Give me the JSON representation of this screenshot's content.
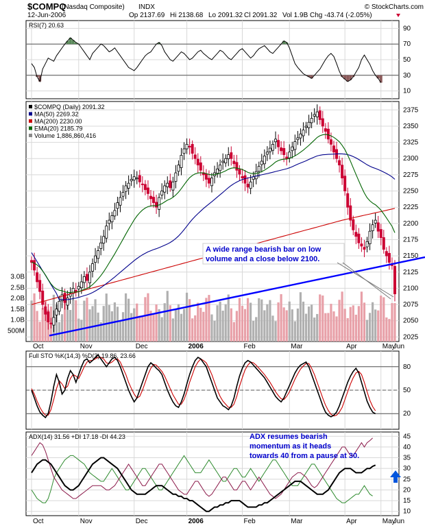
{
  "header": {
    "symbol": "$COMPQ",
    "name": "(Nasdaq Composite)",
    "exchange": "INDX",
    "date": "12-Jun-2006",
    "open": "Op 2137.69",
    "high": "Hi 2138.68",
    "low": "Lo 2091.32",
    "close": "Cl 2091.32",
    "volume": "Vol 1.9B",
    "change": "Chg -43.74 (-2.05%)",
    "watermark": "© StockCharts.com"
  },
  "colors": {
    "up_candle": "#ffffff",
    "down_candle": "#cc0033",
    "ma50": "#00008b",
    "ma200": "#cc0000",
    "ema20": "#006400",
    "trendline": "#0000ff",
    "volume_up": "#b0b0b0",
    "volume_down": "#e8a0a8",
    "rsi_overbought_fill": "#5a8a5a",
    "rsi_oversold_fill": "#8b5a5a",
    "adx": "#000000",
    "plus_di": "#2e8b2e",
    "minus_di": "#8b1a4a",
    "arrow": "#0055dd"
  },
  "x_axis": {
    "months": [
      "Oct",
      "Nov",
      "Dec",
      "2006",
      "Feb",
      "Mar",
      "Apr",
      "May",
      "Jun"
    ]
  },
  "chart_data": [
    {
      "type": "line",
      "panel": "rsi",
      "label": "RSI(7) 20.63",
      "y_ticks": [
        10,
        30,
        50,
        70,
        90
      ],
      "ylim": [
        0,
        100
      ],
      "levels": [
        30,
        70
      ],
      "series": [
        {
          "name": "RSI(7)",
          "values": [
            45,
            40,
            28,
            22,
            38,
            45,
            52,
            50,
            48,
            55,
            60,
            65,
            70,
            74,
            78,
            75,
            72,
            70,
            65,
            60,
            55,
            50,
            58,
            62,
            66,
            70,
            68,
            64,
            60,
            62,
            65,
            60,
            55,
            50,
            45,
            40,
            38,
            36,
            40,
            45,
            50,
            55,
            58,
            60,
            65,
            70,
            72,
            68,
            60,
            55,
            50,
            48,
            52,
            56,
            60,
            58,
            54,
            50,
            52,
            56,
            60,
            62,
            58,
            55,
            52,
            50,
            54,
            58,
            62,
            60,
            56,
            52,
            50,
            54,
            58,
            62,
            64,
            60,
            56,
            52,
            55,
            60,
            64,
            66,
            68,
            64,
            60,
            58,
            62,
            66,
            70,
            74,
            72,
            65,
            55,
            45,
            40,
            36,
            32,
            30,
            28,
            26,
            30,
            34,
            38,
            44,
            50,
            55,
            58,
            54,
            45,
            35,
            28,
            25,
            22,
            24,
            28,
            34,
            40,
            50,
            56,
            50,
            44,
            36,
            30,
            26,
            20.63
          ]
        }
      ]
    },
    {
      "type": "candlestick",
      "panel": "price",
      "label": "$COMPQ (Daily) 2091.32",
      "y_ticks": [
        2025,
        2050,
        2075,
        2100,
        2125,
        2150,
        2175,
        2200,
        2225,
        2250,
        2275,
        2300,
        2325,
        2350,
        2375
      ],
      "ylim": [
        2018,
        2388
      ],
      "legend": [
        "MA(50) 2269.32",
        "MA(200) 2230.00",
        "EMA(20) 2185.79",
        "Volume 1,886,860,416"
      ],
      "close": [
        2140,
        2128,
        2110,
        2095,
        2075,
        2060,
        2048,
        2045,
        2055,
        2068,
        2080,
        2090,
        2078,
        2085,
        2092,
        2100,
        2095,
        2103,
        2110,
        2118,
        2112,
        2125,
        2138,
        2150,
        2158,
        2170,
        2180,
        2196,
        2205,
        2212,
        2220,
        2232,
        2240,
        2248,
        2258,
        2262,
        2268,
        2272,
        2270,
        2264,
        2260,
        2252,
        2246,
        2238,
        2232,
        2225,
        2240,
        2250,
        2258,
        2262,
        2255,
        2264,
        2278,
        2290,
        2305,
        2315,
        2322,
        2318,
        2308,
        2300,
        2290,
        2282,
        2275,
        2268,
        2262,
        2270,
        2278,
        2284,
        2290,
        2296,
        2300,
        2306,
        2300,
        2292,
        2282,
        2276,
        2270,
        2262,
        2256,
        2264,
        2272,
        2280,
        2288,
        2296,
        2304,
        2310,
        2316,
        2322,
        2330,
        2318,
        2312,
        2306,
        2300,
        2310,
        2318,
        2326,
        2332,
        2338,
        2344,
        2350,
        2356,
        2362,
        2368,
        2372,
        2360,
        2350,
        2342,
        2330,
        2322,
        2310,
        2300,
        2290,
        2270,
        2250,
        2225,
        2205,
        2190,
        2180,
        2170,
        2165,
        2160,
        2172,
        2188,
        2198,
        2205,
        2188,
        2178,
        2160,
        2150,
        2140,
        2135,
        2091.32
      ]
    },
    {
      "type": "bar",
      "panel": "volume",
      "y_ticks": [
        "500M",
        "1.0B",
        "1.5B",
        "2.0B",
        "2.5B",
        "3.0B"
      ],
      "ylim": [
        0,
        3.5
      ],
      "unit": "billion shares"
    },
    {
      "type": "line",
      "panel": "stochastic",
      "label": "Full STO %K(14,3) %D(3) 19.86, 23.66",
      "y_ticks": [
        20,
        50,
        80
      ],
      "ylim": [
        0,
        100
      ],
      "series": [
        {
          "name": "%K(14,3)",
          "values": [
            50,
            40,
            30,
            22,
            18,
            15,
            20,
            35,
            55,
            70,
            60,
            45,
            50,
            65,
            75,
            70,
            60,
            70,
            80,
            88,
            90,
            85,
            88,
            92,
            95,
            90,
            85,
            80,
            85,
            90,
            92,
            88,
            80,
            70,
            60,
            50,
            42,
            35,
            40,
            50,
            60,
            70,
            80,
            85,
            82,
            78,
            75,
            70,
            60,
            50,
            42,
            35,
            30,
            28,
            35,
            45,
            58,
            70,
            80,
            88,
            92,
            90,
            85,
            80,
            70,
            60,
            50,
            40,
            35,
            30,
            28,
            25,
            30,
            40,
            55,
            68,
            78,
            85,
            88,
            86,
            82,
            78,
            74,
            70,
            66,
            60,
            54,
            48,
            42,
            38,
            35,
            40,
            48,
            56,
            64,
            72,
            78,
            82,
            84,
            86,
            80,
            70,
            60,
            50,
            40,
            30,
            22,
            18,
            16,
            18,
            22,
            30,
            40,
            50,
            60,
            68,
            74,
            78,
            72,
            60,
            48,
            36,
            28,
            22,
            19.86
          ]
        },
        {
          "name": "%D(3)",
          "values": [
            52,
            45,
            36,
            28,
            22,
            18,
            18,
            25,
            38,
            52,
            62,
            58,
            52,
            55,
            65,
            70,
            68,
            65,
            72,
            80,
            86,
            88,
            88,
            90,
            92,
            92,
            90,
            85,
            84,
            86,
            89,
            90,
            86,
            78,
            70,
            60,
            52,
            45,
            40,
            42,
            50,
            60,
            70,
            78,
            83,
            82,
            78,
            74,
            68,
            60,
            52,
            44,
            38,
            32,
            32,
            38,
            48,
            60,
            70,
            80,
            86,
            90,
            88,
            85,
            78,
            70,
            60,
            50,
            42,
            36,
            32,
            28,
            28,
            32,
            42,
            55,
            66,
            76,
            82,
            86,
            85,
            82,
            78,
            74,
            70,
            65,
            60,
            54,
            48,
            43,
            39,
            38,
            42,
            48,
            56,
            64,
            71,
            77,
            81,
            84,
            84,
            78,
            70,
            60,
            50,
            40,
            31,
            24,
            19,
            17,
            18,
            22,
            28,
            38,
            48,
            58,
            66,
            72,
            74,
            70,
            60,
            48,
            37,
            29,
            23.66
          ]
        }
      ],
      "levels": [
        20,
        50,
        80
      ]
    },
    {
      "type": "line",
      "panel": "adx",
      "label": "ADX(14) 31.56 +DI 17.18 -DI 44.23",
      "y_ticks": [
        10,
        15,
        20,
        25,
        30,
        35,
        40,
        45
      ],
      "ylim": [
        8,
        47
      ],
      "series": [
        {
          "name": "ADX(14)",
          "values": [
            28,
            30,
            32,
            33,
            34,
            34,
            33,
            32,
            30,
            28,
            26,
            24,
            22,
            21,
            20,
            20,
            21,
            22,
            24,
            26,
            28,
            30,
            32,
            33,
            34,
            35,
            35,
            34,
            33,
            32,
            31,
            30,
            28,
            26,
            24,
            22,
            20,
            19,
            18,
            18,
            18,
            18,
            19,
            20,
            21,
            22,
            22,
            22,
            21,
            20,
            19,
            18,
            18,
            17,
            17,
            16,
            16,
            15,
            15,
            14,
            13,
            12,
            11,
            10,
            10,
            11,
            12,
            12,
            13,
            13,
            14,
            14,
            15,
            15,
            15,
            15,
            14,
            13,
            12,
            12,
            12,
            12,
            13,
            13,
            14,
            14,
            15,
            16,
            17,
            18,
            19,
            20,
            21,
            22,
            23,
            24,
            24,
            24,
            23,
            22,
            21,
            20,
            19,
            18,
            18,
            18,
            19,
            20,
            22,
            24,
            26,
            28,
            29,
            30,
            30,
            30,
            29,
            28,
            28,
            28,
            29,
            30,
            30,
            31,
            31.56
          ]
        },
        {
          "name": "+DI",
          "values": [
            20,
            18,
            16,
            15,
            14,
            14,
            16,
            20,
            25,
            28,
            30,
            32,
            34,
            35,
            36,
            36,
            35,
            34,
            33,
            32,
            30,
            28,
            27,
            26,
            25,
            24,
            24,
            26,
            28,
            30,
            28,
            26,
            24,
            22,
            20,
            20,
            22,
            24,
            26,
            28,
            30,
            30,
            28,
            26,
            24,
            22,
            20,
            20,
            22,
            24,
            26,
            28,
            30,
            32,
            34,
            36,
            34,
            32,
            30,
            28,
            28,
            28,
            30,
            32,
            34,
            32,
            30,
            28,
            26,
            24,
            24,
            26,
            28,
            30,
            30,
            28,
            26,
            26,
            28,
            30,
            28,
            26,
            24,
            26,
            28,
            30,
            32,
            34,
            34,
            32,
            30,
            28,
            26,
            24,
            22,
            22,
            22,
            24,
            26,
            28,
            30,
            32,
            32,
            30,
            28,
            26,
            24,
            22,
            20,
            18,
            16,
            15,
            14,
            14,
            15,
            16,
            17,
            18,
            18,
            20,
            22,
            20,
            18,
            17.18
          ]
        },
        {
          "name": "-DI",
          "values": [
            36,
            38,
            40,
            42,
            41,
            38,
            34,
            30,
            26,
            24,
            22,
            20,
            19,
            18,
            17,
            16,
            16,
            17,
            18,
            19,
            20,
            21,
            22,
            22,
            22,
            22,
            21,
            20,
            20,
            21,
            22,
            24,
            26,
            28,
            30,
            32,
            30,
            28,
            26,
            24,
            22,
            22,
            24,
            26,
            28,
            30,
            32,
            32,
            30,
            28,
            26,
            24,
            22,
            20,
            19,
            18,
            18,
            20,
            22,
            24,
            24,
            22,
            20,
            18,
            17,
            18,
            20,
            22,
            24,
            26,
            26,
            24,
            22,
            20,
            20,
            22,
            24,
            24,
            22,
            20,
            22,
            24,
            26,
            24,
            22,
            20,
            18,
            17,
            16,
            17,
            18,
            20,
            22,
            24,
            26,
            27,
            28,
            28,
            27,
            26,
            24,
            22,
            21,
            22,
            24,
            26,
            28,
            30,
            32,
            34,
            36,
            38,
            40,
            40,
            38,
            36,
            36,
            38,
            40,
            42,
            40,
            42,
            43,
            44.23
          ]
        }
      ]
    }
  ],
  "annotations": {
    "price_note": [
      "A wide range bearish bar on low",
      "volume and a close below 2100."
    ],
    "adx_note": [
      "ADX resumes bearish",
      "momentum as it heads",
      "towards 40 from a pause at 30."
    ]
  }
}
